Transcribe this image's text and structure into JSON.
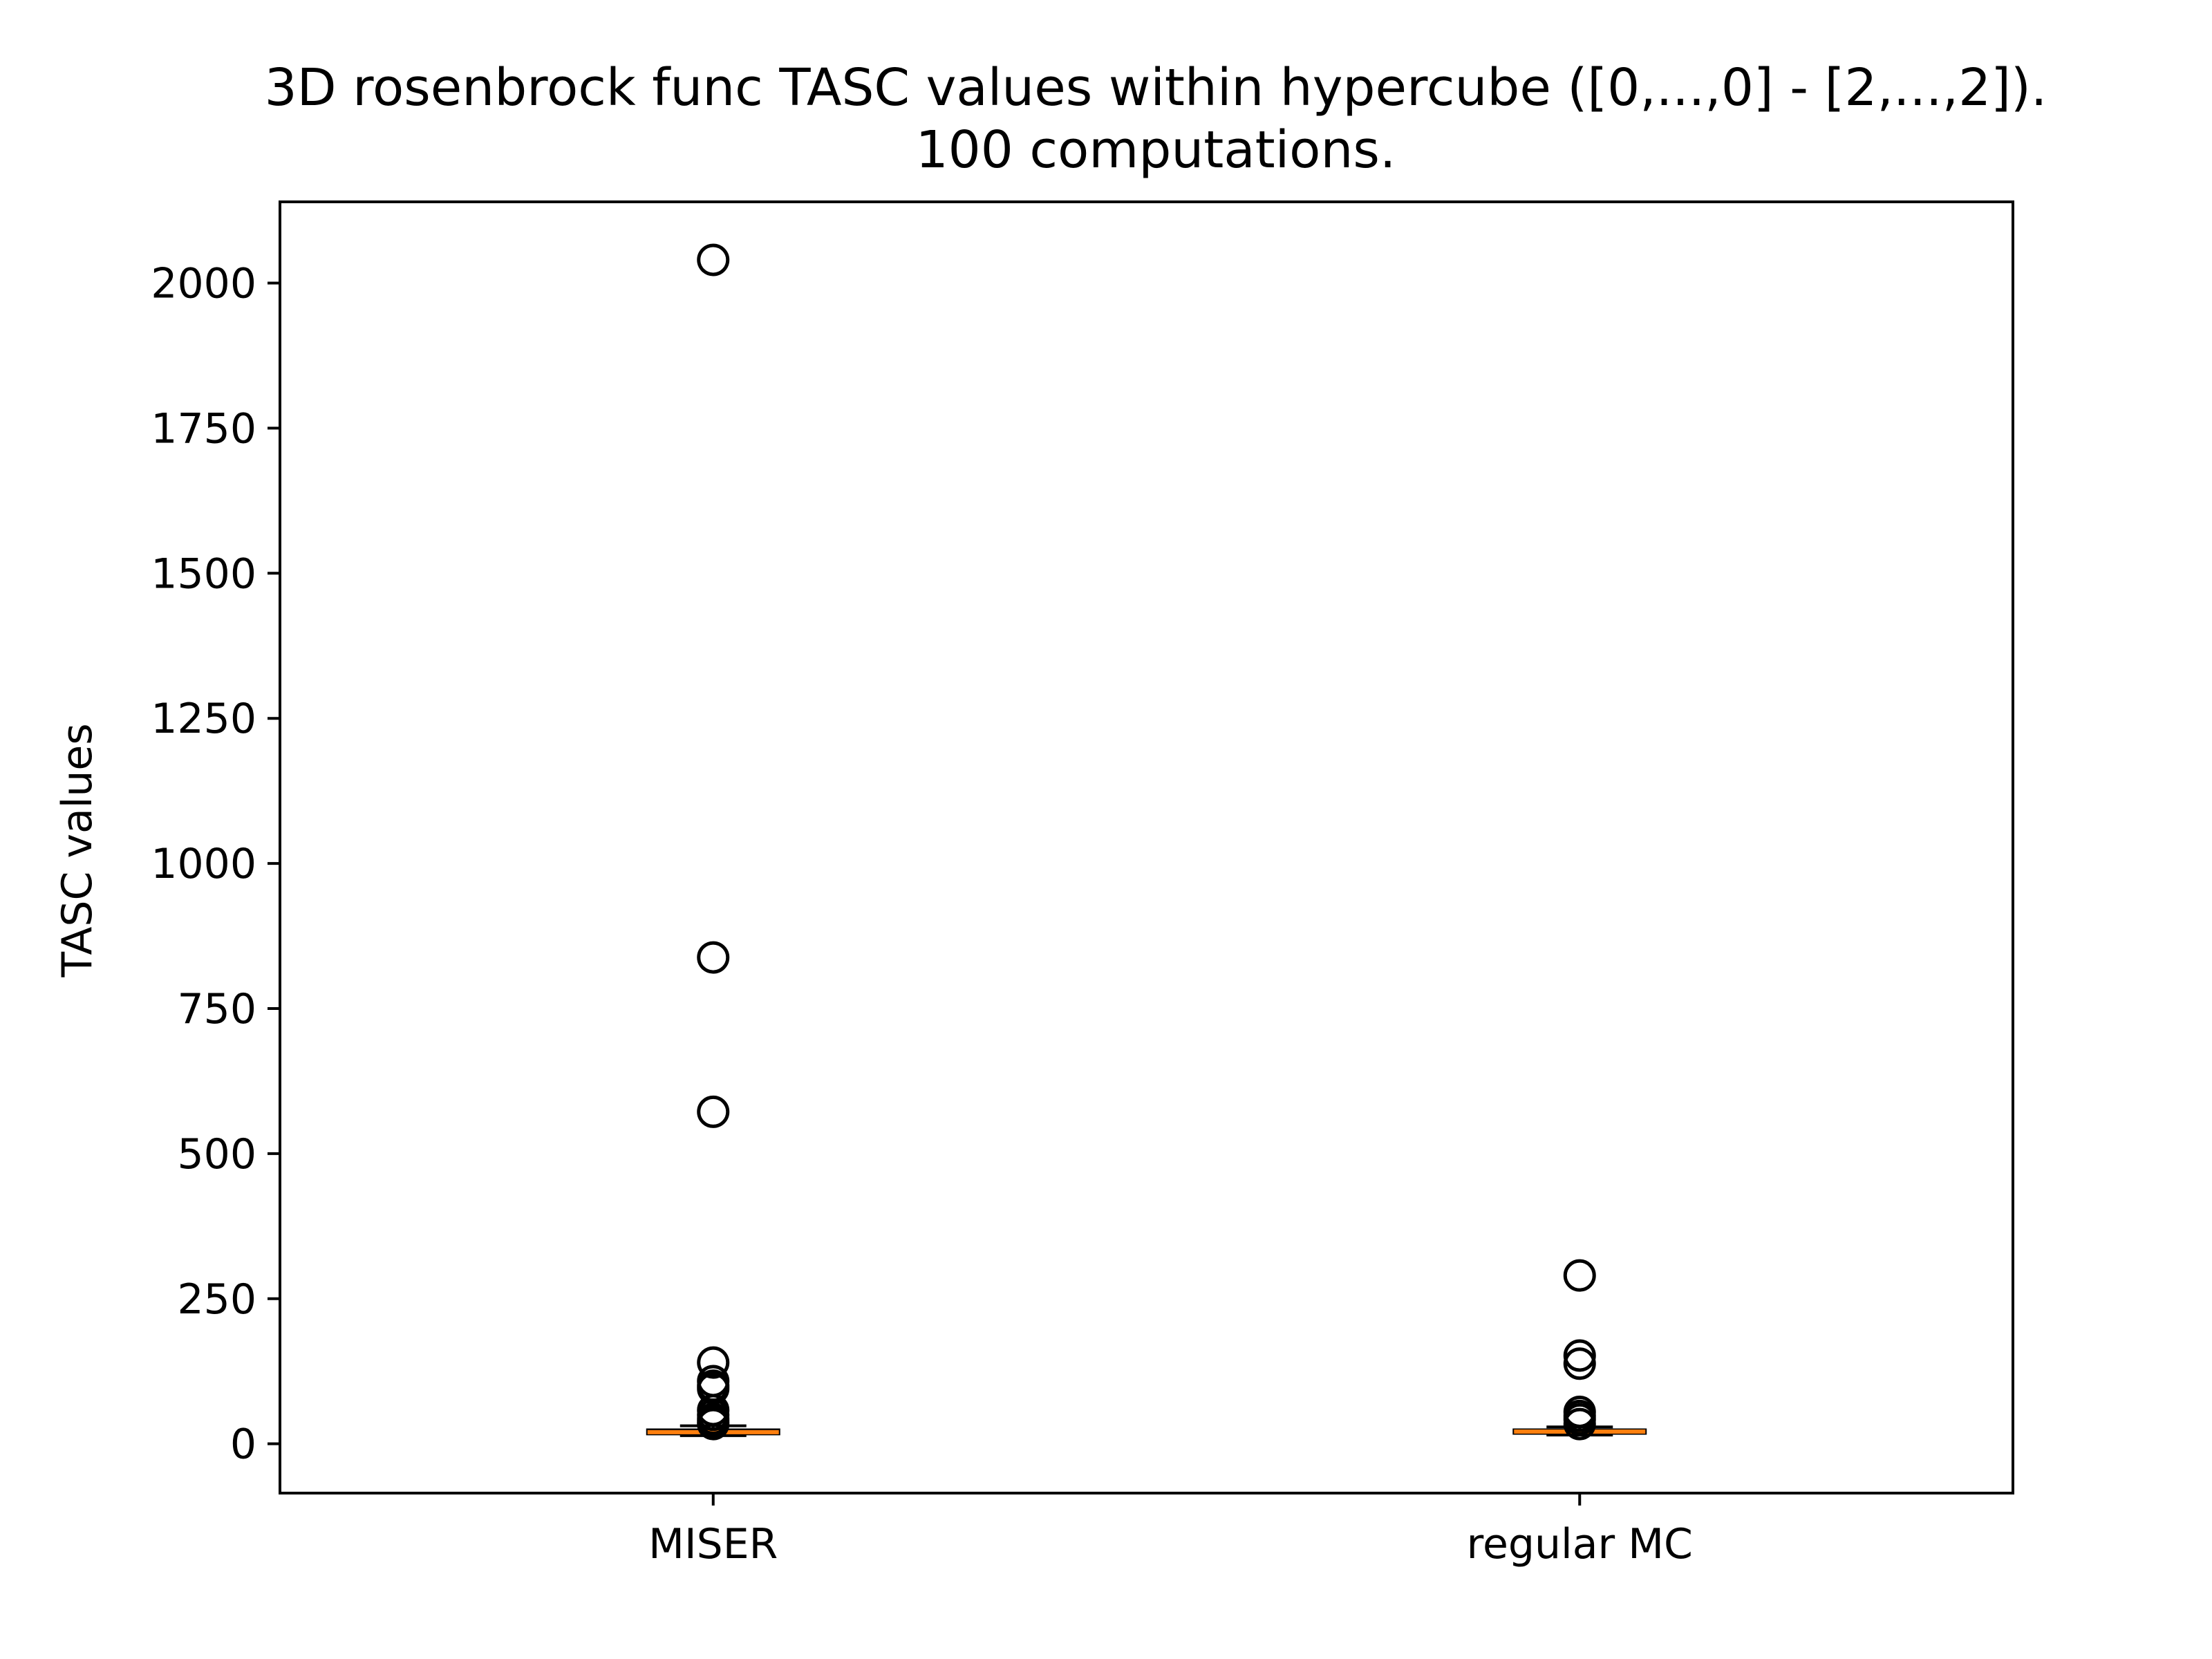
{
  "chart_data": {
    "type": "box",
    "title": "3D rosenbrock func TASC values within hypercube ([0,...,0] - [2,...,2]).",
    "subtitle": "100 computations.",
    "xlabel": "",
    "ylabel": "TASC values",
    "ylim": [
      -85,
      2140
    ],
    "yticks": [
      0,
      250,
      500,
      750,
      1000,
      1250,
      1500,
      1750,
      2000
    ],
    "grid": false,
    "categories": [
      "MISER",
      "regular MC"
    ],
    "series": [
      {
        "q1": 17,
        "median": 20,
        "q3": 24,
        "whisker_low": 14,
        "whisker_high": 31,
        "outliers": [
          2040,
          838,
          572,
          140,
          108,
          100,
          95,
          58,
          50,
          43,
          38,
          34
        ]
      },
      {
        "q1": 18,
        "median": 21,
        "q3": 24,
        "whisker_low": 15,
        "whisker_high": 29,
        "outliers": [
          290,
          152,
          138,
          55,
          48,
          42,
          34
        ]
      }
    ],
    "colors": {
      "box_edge": "#000000",
      "median": "#ff7f0e",
      "outlier_edge": "#000000"
    }
  }
}
